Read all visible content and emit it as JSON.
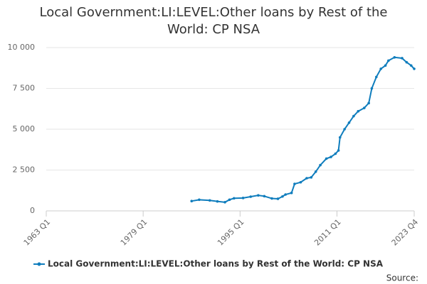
{
  "chart_data": {
    "type": "line",
    "title": "Local Government:LI:LEVEL:Other loans by Rest of the World: CP NSA",
    "source": "Source:",
    "x": [
      1987.0,
      1988.25,
      1990.0,
      1991.25,
      1992.5,
      1993.25,
      1994.0,
      1995.5,
      1996.75,
      1998.0,
      1999.0,
      2000.25,
      2001.25,
      2002.0,
      2002.5,
      2003.5,
      2004.0,
      2005.0,
      2006.0,
      2006.75,
      2007.5,
      2008.25,
      2009.25,
      2010.0,
      2010.75,
      2011.25,
      2011.5,
      2012.25,
      2013.0,
      2013.75,
      2014.5,
      2015.5,
      2016.25,
      2016.75,
      2017.5,
      2018.25,
      2019.0,
      2019.5,
      2020.5,
      2021.75,
      2022.5,
      2023.25,
      2023.75
    ],
    "series": [
      {
        "name": "Local Government:LI:LEVEL:Other loans by Rest of the World: CP NSA",
        "color": "#0f7dbd",
        "values": [
          600,
          680,
          640,
          580,
          530,
          680,
          770,
          790,
          870,
          950,
          900,
          760,
          740,
          880,
          1000,
          1100,
          1650,
          1750,
          2000,
          2050,
          2400,
          2800,
          3200,
          3300,
          3500,
          3700,
          4500,
          5000,
          5400,
          5800,
          6100,
          6300,
          6600,
          7500,
          8200,
          8700,
          8900,
          9200,
          9400,
          9350,
          9100,
          8900,
          8700
        ]
      }
    ],
    "xlim": [
      1963.0,
      2023.75
    ],
    "xticks": [
      {
        "value": 1963.0,
        "label": "1963 Q1"
      },
      {
        "value": 1979.0,
        "label": "1979 Q1"
      },
      {
        "value": 1995.0,
        "label": "1995 Q1"
      },
      {
        "value": 2011.0,
        "label": "2011 Q1"
      },
      {
        "value": 2023.75,
        "label": "2023 Q4"
      }
    ],
    "ylim": [
      0,
      10000
    ],
    "yticks": [
      0,
      {
        "value": 2500,
        "label": "2 500"
      },
      {
        "value": 5000,
        "label": "5 000"
      },
      {
        "value": 7500,
        "label": "7 500"
      },
      {
        "value": 10000,
        "label": "10 000"
      }
    ],
    "grid": true
  }
}
